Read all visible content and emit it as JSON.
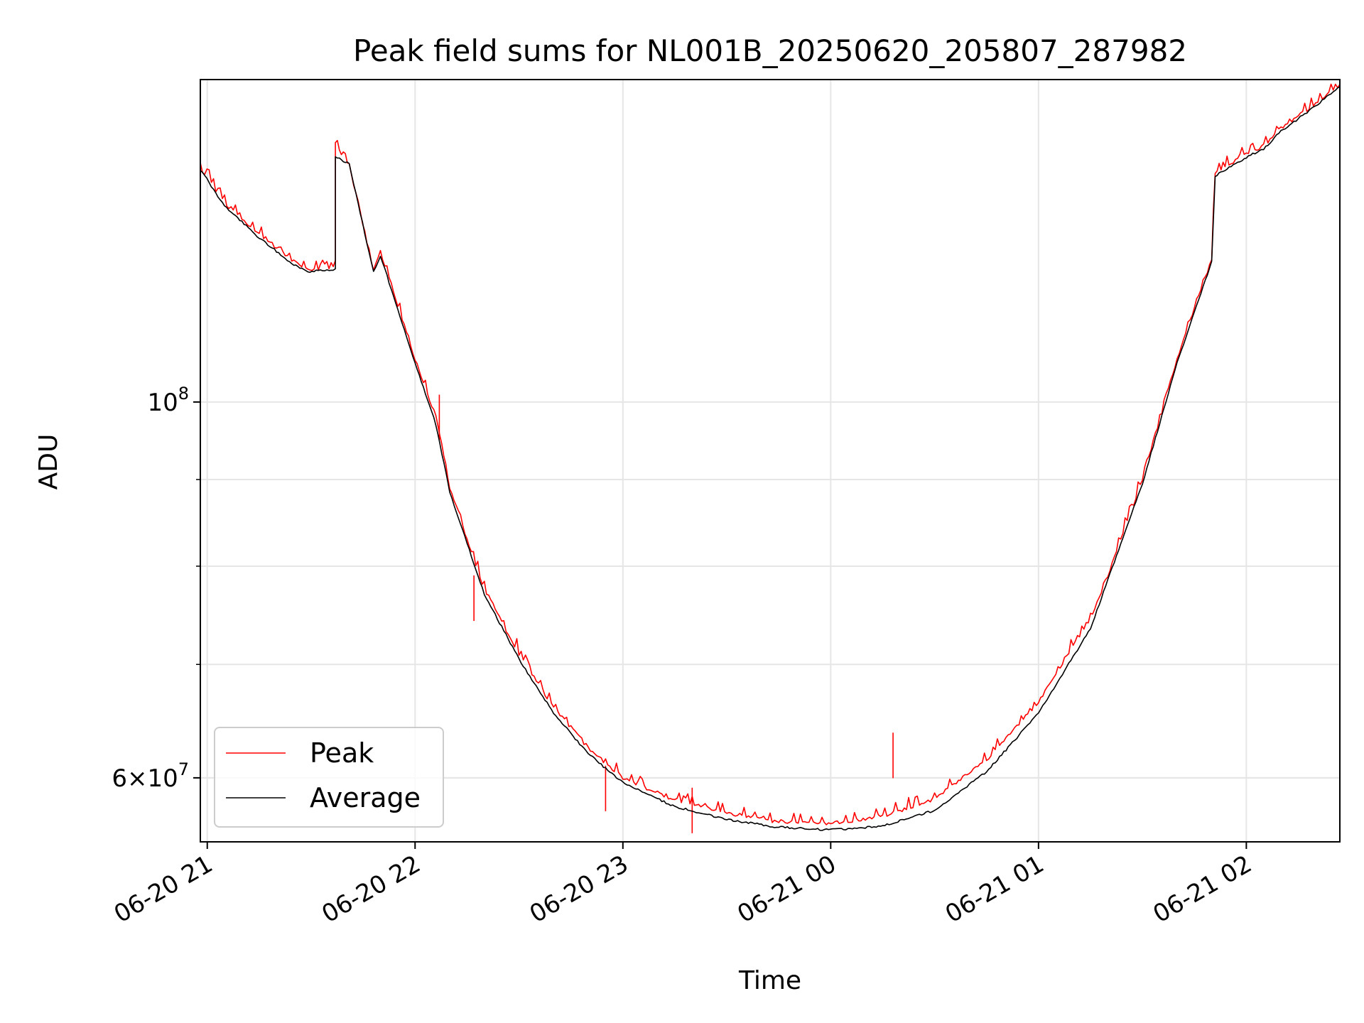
{
  "chart_data": {
    "type": "line",
    "title": "Peak field sums for NL001B_20250620_205807_287982",
    "xlabel": "Time",
    "ylabel": "ADU",
    "y_scale": "log",
    "ylim": [
      55000000,
      155000000
    ],
    "xlim": [
      "2025-06-20 20:58",
      "2025-06-21 02:27"
    ],
    "x_ticks": [
      {
        "time": "2025-06-20 21:00",
        "label": "06-20 21"
      },
      {
        "time": "2025-06-20 22:00",
        "label": "06-20 22"
      },
      {
        "time": "2025-06-20 23:00",
        "label": "06-20 23"
      },
      {
        "time": "2025-06-21 00:00",
        "label": "06-21 00"
      },
      {
        "time": "2025-06-21 01:00",
        "label": "06-21 01"
      },
      {
        "time": "2025-06-21 02:00",
        "label": "06-21 02"
      }
    ],
    "y_major_ticks": [
      {
        "value": 60000000,
        "mantissa": "6",
        "base": "10",
        "exponent": "7"
      },
      {
        "value": 100000000,
        "mantissa": "",
        "base": "10",
        "exponent": "8"
      }
    ],
    "y_minor_gridlines": [
      60000000,
      70000000,
      80000000,
      90000000
    ],
    "grid": true,
    "legend_position": "lower-left",
    "series": [
      {
        "name": "Peak",
        "color": "#ff0000",
        "points": [
          [
            "2025-06-20 20:58",
            137500000
          ],
          [
            "2025-06-20 21:05",
            131000000
          ],
          [
            "2025-06-20 21:15",
            125500000
          ],
          [
            "2025-06-20 21:25",
            121000000
          ],
          [
            "2025-06-20 21:29",
            119800000
          ],
          [
            "2025-06-20 21:37",
            120000000
          ],
          [
            "2025-06-20 21:37",
            142000000
          ],
          [
            "2025-06-20 21:41",
            138000000
          ],
          [
            "2025-06-20 21:48",
            119500000
          ],
          [
            "2025-06-20 21:50",
            122500000
          ],
          [
            "2025-06-20 21:55",
            114000000
          ],
          [
            "2025-06-20 22:00",
            106000000
          ],
          [
            "2025-06-20 22:06",
            98000000
          ],
          [
            "2025-06-20 22:10",
            89000000
          ],
          [
            "2025-06-20 22:20",
            77500000
          ],
          [
            "2025-06-20 22:30",
            71000000
          ],
          [
            "2025-06-20 22:40",
            66000000
          ],
          [
            "2025-06-20 22:50",
            62500000
          ],
          [
            "2025-06-20 23:00",
            60000000
          ],
          [
            "2025-06-20 23:15",
            58200000
          ],
          [
            "2025-06-20 23:30",
            57200000
          ],
          [
            "2025-06-20 23:45",
            56500000
          ],
          [
            "2025-06-21 00:00",
            56400000
          ],
          [
            "2025-06-21 00:15",
            56900000
          ],
          [
            "2025-06-21 00:30",
            58300000
          ],
          [
            "2025-06-21 00:45",
            61500000
          ],
          [
            "2025-06-21 01:00",
            66500000
          ],
          [
            "2025-06-21 01:15",
            74500000
          ],
          [
            "2025-06-21 01:20",
            79000000
          ],
          [
            "2025-06-21 01:30",
            90000000
          ],
          [
            "2025-06-21 01:40",
            106000000
          ],
          [
            "2025-06-21 01:50",
            121500000
          ],
          [
            "2025-06-21 01:51",
            136500000
          ],
          [
            "2025-06-21 01:55",
            138000000
          ],
          [
            "2025-06-21 02:00",
            140000000
          ],
          [
            "2025-06-21 02:05",
            141500000
          ],
          [
            "2025-06-21 02:10",
            145000000
          ],
          [
            "2025-06-21 02:20",
            150000000
          ],
          [
            "2025-06-21 02:27",
            154000000
          ]
        ]
      },
      {
        "name": "Average",
        "color": "#000000",
        "points": [
          [
            "2025-06-20 20:58",
            137200000
          ],
          [
            "2025-06-20 21:05",
            130500000
          ],
          [
            "2025-06-20 21:15",
            125000000
          ],
          [
            "2025-06-20 21:25",
            120500000
          ],
          [
            "2025-06-20 21:29",
            119400000
          ],
          [
            "2025-06-20 21:37",
            119700000
          ],
          [
            "2025-06-20 21:37",
            139500000
          ],
          [
            "2025-06-20 21:41",
            138200000
          ],
          [
            "2025-06-20 21:48",
            119300000
          ],
          [
            "2025-06-20 21:50",
            122000000
          ],
          [
            "2025-06-20 21:55",
            113500000
          ],
          [
            "2025-06-20 22:00",
            105500000
          ],
          [
            "2025-06-20 22:06",
            97000000
          ],
          [
            "2025-06-20 22:10",
            88500000
          ],
          [
            "2025-06-20 22:20",
            77000000
          ],
          [
            "2025-06-20 22:30",
            70500000
          ],
          [
            "2025-06-20 22:40",
            65500000
          ],
          [
            "2025-06-20 22:50",
            62000000
          ],
          [
            "2025-06-20 23:00",
            59600000
          ],
          [
            "2025-06-20 23:15",
            57700000
          ],
          [
            "2025-06-20 23:30",
            56700000
          ],
          [
            "2025-06-20 23:45",
            56100000
          ],
          [
            "2025-06-21 00:00",
            55900000
          ],
          [
            "2025-06-21 00:15",
            56200000
          ],
          [
            "2025-06-21 00:30",
            57400000
          ],
          [
            "2025-06-21 00:45",
            60500000
          ],
          [
            "2025-06-21 01:00",
            65500000
          ],
          [
            "2025-06-21 01:15",
            73500000
          ],
          [
            "2025-06-21 01:20",
            78500000
          ],
          [
            "2025-06-21 01:30",
            89500000
          ],
          [
            "2025-06-21 01:40",
            105500000
          ],
          [
            "2025-06-21 01:50",
            121000000
          ],
          [
            "2025-06-21 01:51",
            136000000
          ],
          [
            "2025-06-21 01:55",
            137500000
          ],
          [
            "2025-06-21 02:00",
            139500000
          ],
          [
            "2025-06-21 02:05",
            141000000
          ],
          [
            "2025-06-21 02:10",
            144500000
          ],
          [
            "2025-06-21 02:20",
            149500000
          ],
          [
            "2025-06-21 02:27",
            153500000
          ]
        ]
      }
    ],
    "spikes": [
      {
        "series": "Peak",
        "time": "2025-06-21 00:18",
        "value": 63800000
      },
      {
        "series": "Peak",
        "time": "2025-06-20 22:07",
        "value": 101000000
      },
      {
        "series": "Peak",
        "time": "2025-06-20 22:17",
        "value": 79000000
      },
      {
        "series": "Peak",
        "time": "2025-06-20 23:20",
        "value": 59200000
      },
      {
        "series": "Peak",
        "time": "2025-06-20 22:55",
        "value": 61000000
      }
    ]
  }
}
